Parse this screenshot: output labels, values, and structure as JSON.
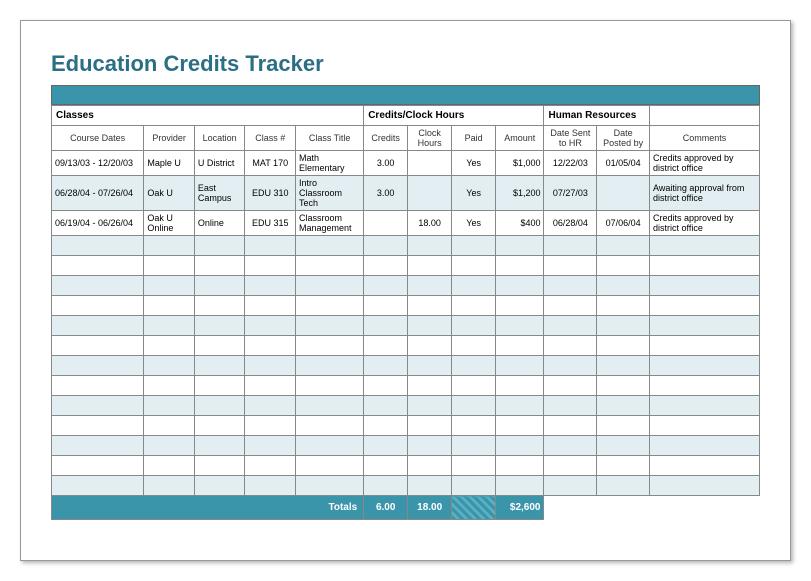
{
  "title": "Education Credits Tracker",
  "colors": {
    "accent": "#3a95ab",
    "title": "#2b6f85",
    "alt_row": "#e2eef1",
    "border": "#888888"
  },
  "sections": {
    "classes": "Classes",
    "credits": "Credits/Clock Hours",
    "hr": "Human Resources"
  },
  "columns": {
    "dates": "Course Dates",
    "provider": "Provider",
    "location": "Location",
    "classnum": "Class #",
    "classtitle": "Class Title",
    "credits": "Credits",
    "clock": "Clock Hours",
    "paid": "Paid",
    "amount": "Amount",
    "datehr": "Date Sent to HR",
    "dateby": "Date Posted by",
    "comments": "Comments"
  },
  "rows": [
    {
      "dates": "09/13/03 - 12/20/03",
      "provider": "Maple U",
      "location": "U District",
      "classnum": "MAT 170",
      "classtitle": "Math Elementary",
      "credits": "3.00",
      "clock": "",
      "paid": "Yes",
      "amount": "$1,000",
      "datehr": "12/22/03",
      "dateby": "01/05/04",
      "comments": "Credits approved by district office"
    },
    {
      "dates": "06/28/04 - 07/26/04",
      "provider": "Oak U",
      "location": "East Campus",
      "classnum": "EDU 310",
      "classtitle": "Intro Classroom Tech",
      "credits": "3.00",
      "clock": "",
      "paid": "Yes",
      "amount": "$1,200",
      "datehr": "07/27/03",
      "dateby": "",
      "comments": "Awaiting approval from district office"
    },
    {
      "dates": "06/19/04 - 06/26/04",
      "provider": "Oak U Online",
      "location": "Online",
      "classnum": "EDU 315",
      "classtitle": "Classroom Management",
      "credits": "",
      "clock": "18.00",
      "paid": "Yes",
      "amount": "$400",
      "datehr": "06/28/04",
      "dateby": "07/06/04",
      "comments": "Credits approved by district office"
    }
  ],
  "blank_rows": 13,
  "totals": {
    "label": "Totals",
    "credits": "6.00",
    "clock": "18.00",
    "amount": "$2,600"
  }
}
